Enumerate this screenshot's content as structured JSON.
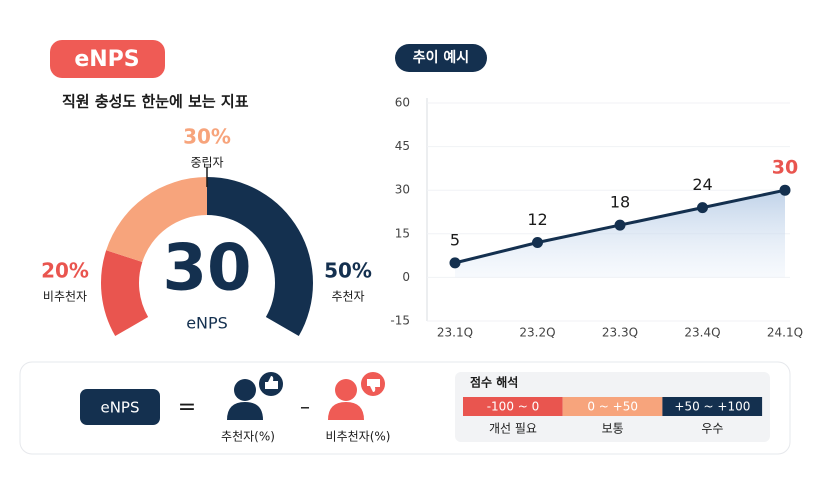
{
  "badge": "eNPS",
  "subtitle": "직원 충성도 한눈에 보는 지표",
  "chart_data": [
    {
      "type": "gauge",
      "categories": [
        "비추천자",
        "중립자",
        "추천자"
      ],
      "values": [
        20,
        30,
        50
      ],
      "value_labels": [
        "20%",
        "30%",
        "50%"
      ],
      "colors": [
        "#e9554f",
        "#f7a47c",
        "#14304f"
      ],
      "center_value": "30",
      "center_label": "eNPS"
    },
    {
      "type": "line",
      "title": "추이 예시",
      "categories": [
        "23.1Q",
        "23.2Q",
        "23.3Q",
        "23.4Q",
        "24.1Q"
      ],
      "values": [
        5,
        12,
        18,
        24,
        30
      ],
      "color": "#14304f",
      "highlight_color": "#e9554f",
      "ylim": [
        -15,
        60
      ],
      "yticks": [
        -15,
        0,
        15,
        30,
        45,
        60
      ]
    }
  ],
  "formula": {
    "term": "eNPS",
    "equals": "=",
    "promoters": "추천자(%)",
    "minus": "–",
    "detractors": "비추천자(%)"
  },
  "interpretation": {
    "title": "점수 해석",
    "bands": [
      {
        "range": "-100 ~ 0",
        "label": "개선 필요"
      },
      {
        "range": "0 ~ +50",
        "label": "보통"
      },
      {
        "range": "+50 ~ +100",
        "label": "우수"
      }
    ]
  }
}
